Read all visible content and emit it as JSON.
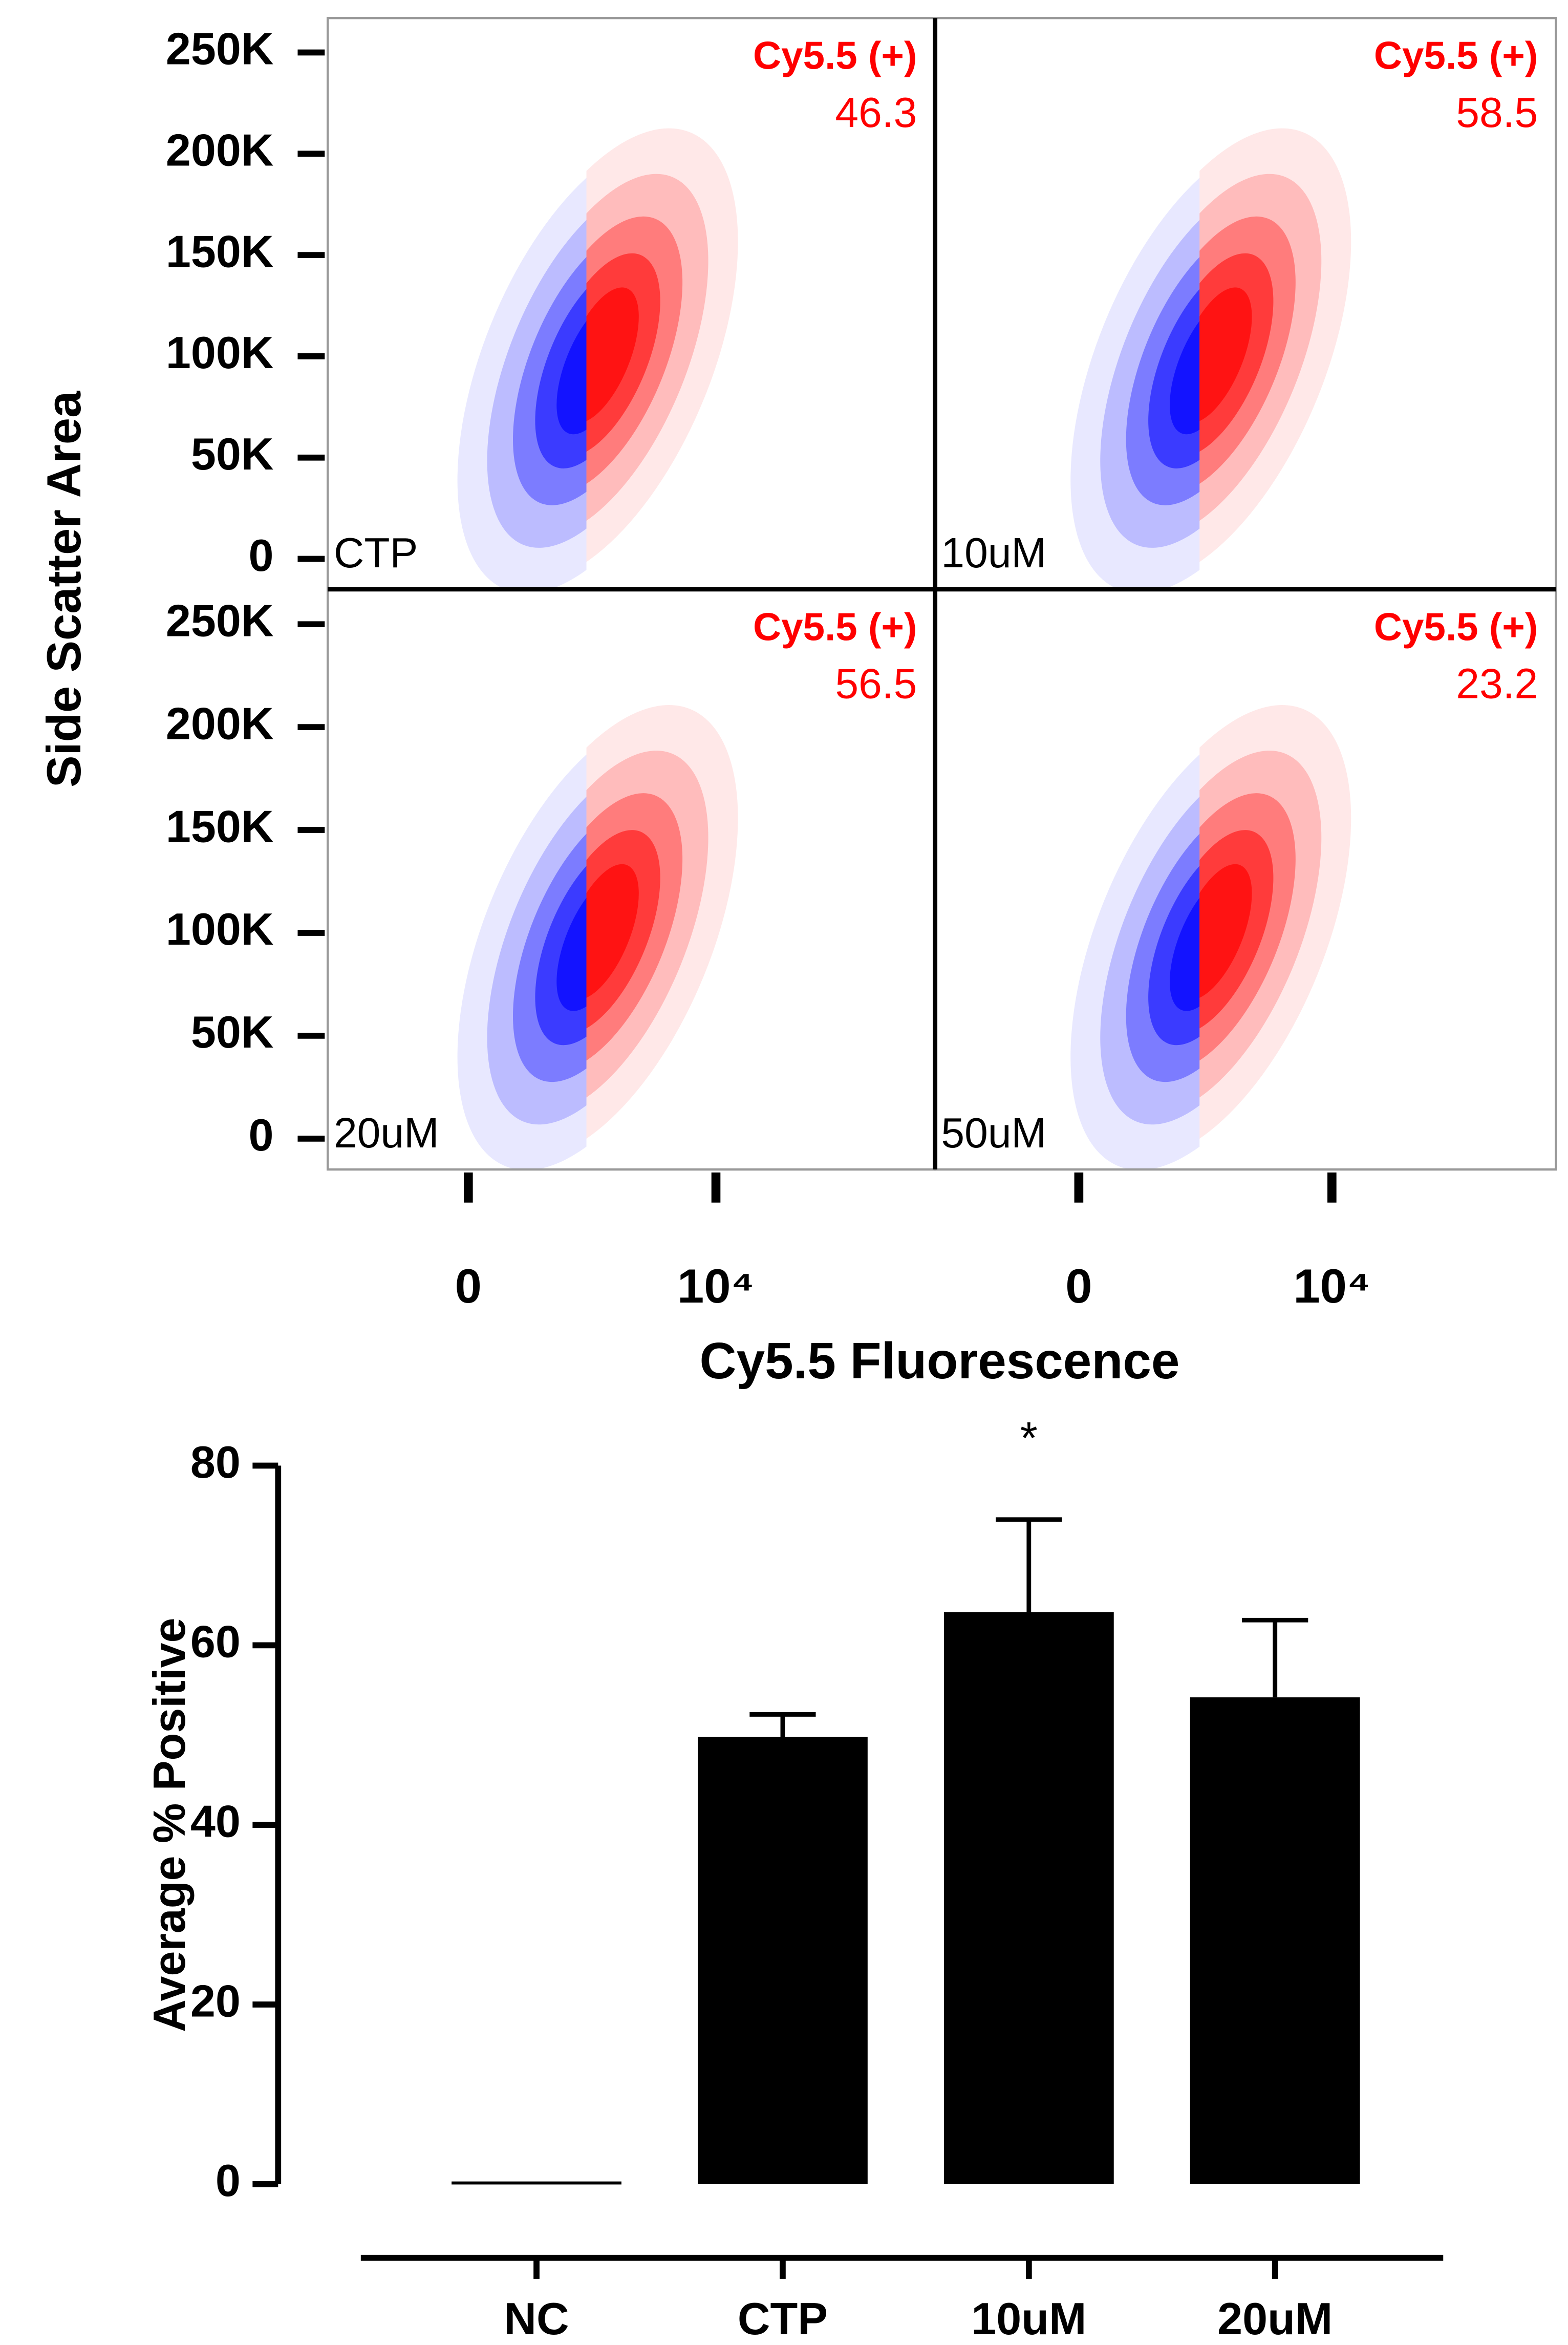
{
  "chart_data": [
    {
      "type": "scatter",
      "y_label": "Side Scatter Area",
      "x_label": "Cy5.5 Fluorescence",
      "xscale": "biexponential",
      "xlim": [
        -2000,
        262144
      ],
      "xticks": [
        0,
        {
          "value": 10000,
          "label": "10⁴"
        }
      ],
      "ylim": [
        -15000,
        267000
      ],
      "yticks": [
        0,
        {
          "value": 50000,
          "label": "50K"
        },
        {
          "value": 100000,
          "label": "100K"
        },
        {
          "value": 150000,
          "label": "150K"
        },
        {
          "value": 200000,
          "label": "200K"
        },
        {
          "value": 250000,
          "label": "250K"
        }
      ],
      "gate": 1410,
      "negative_color": "#0000ff",
      "positive_color": "#ff0000",
      "panels": [
        {
          "name": "CTP",
          "gate_name": "Cy5.5 (+)",
          "gate_value": 46.3
        },
        {
          "name": "10uM",
          "gate_name": "Cy5.5 (+)",
          "gate_value": 58.5
        },
        {
          "name": "20uM",
          "gate_name": "Cy5.5 (+)",
          "gate_value": 56.5
        },
        {
          "name": "50uM",
          "gate_name": "Cy5.5 (+)",
          "gate_value": 23.2
        }
      ]
    },
    {
      "type": "bar",
      "y_label": "Average % Positive",
      "categories": [
        "NC",
        "CTP",
        "10uM",
        "20uM"
      ],
      "values": [
        0.3,
        49.8,
        63.7,
        54.2
      ],
      "errors": [
        0,
        2.5,
        10.3,
        8.6
      ],
      "color": "#000000",
      "ylim": [
        0,
        80
      ],
      "yticks": [
        0,
        20,
        40,
        60,
        80
      ],
      "annotations": [
        {
          "text": "*",
          "category": "10uM"
        }
      ]
    }
  ]
}
